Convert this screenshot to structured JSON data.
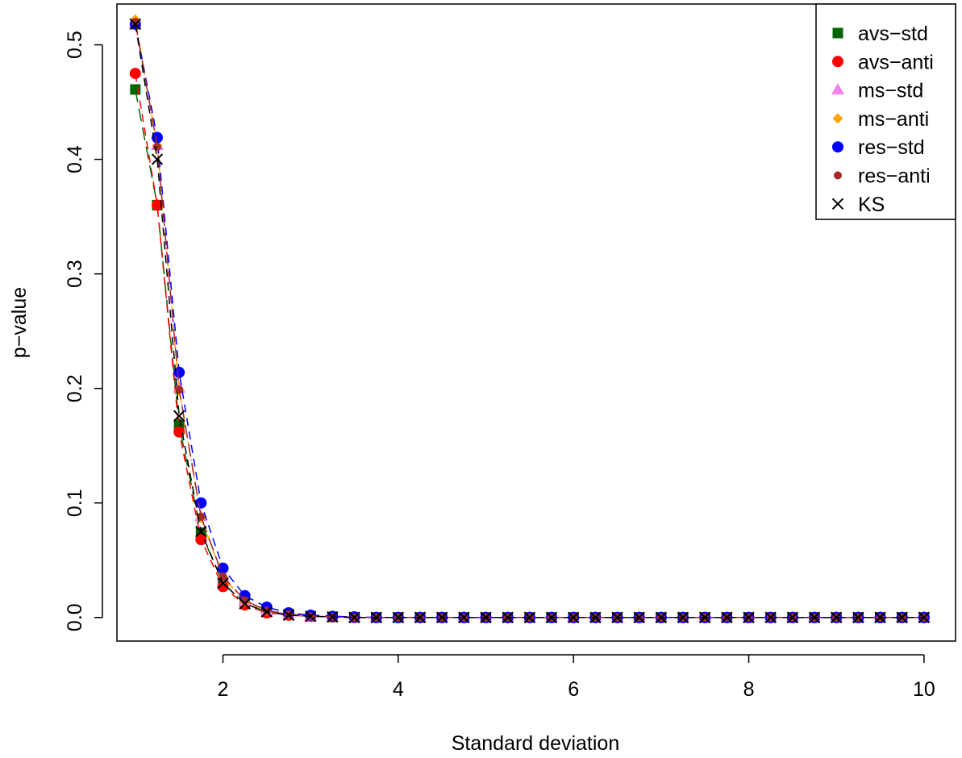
{
  "chart_data": {
    "type": "line",
    "title": "",
    "xlabel": "Standard deviation",
    "ylabel": "p−value",
    "xlim": [
      0.79,
      10.36
    ],
    "ylim": [
      -0.0206,
      0.5356
    ],
    "xticks": [
      2,
      4,
      6,
      8,
      10
    ],
    "xtick_labels": [
      "2",
      "4",
      "6",
      "8",
      "10"
    ],
    "yticks": [
      0.0,
      0.1,
      0.2,
      0.3,
      0.4,
      0.5
    ],
    "ytick_labels": [
      "0.0",
      "0.1",
      "0.2",
      "0.3",
      "0.4",
      "0.5"
    ],
    "grid": false,
    "legend_position": "top-right",
    "x": [
      1.0,
      1.25,
      1.5,
      1.75,
      2.0,
      2.25,
      2.5,
      2.75,
      3.0,
      3.25,
      3.5,
      3.75,
      4.0,
      4.25,
      4.5,
      4.75,
      5.0,
      5.25,
      5.5,
      5.75,
      6.0,
      6.25,
      6.5,
      6.75,
      7.0,
      7.25,
      7.5,
      7.75,
      8.0,
      8.25,
      8.5,
      8.75,
      9.0,
      9.25,
      9.5,
      9.75,
      10.0
    ],
    "series": [
      {
        "name": "avs−std",
        "color": "#006400",
        "marker": "square",
        "line": "longdash",
        "values": [
          0.461,
          0.36,
          0.168,
          0.074,
          0.03,
          0.012,
          0.005,
          0.003,
          0.001,
          0.0005,
          0,
          0,
          0,
          0,
          0,
          0,
          0,
          0,
          0,
          0,
          0,
          0,
          0,
          0,
          0,
          0,
          0,
          0,
          0,
          0,
          0,
          0,
          0,
          0,
          0,
          0,
          0
        ]
      },
      {
        "name": "avs−anti",
        "color": "#ff0000",
        "marker": "circle",
        "line": "dashed",
        "values": [
          0.475,
          0.36,
          0.162,
          0.068,
          0.027,
          0.011,
          0.004,
          0.002,
          0.001,
          0.0005,
          0,
          0,
          0,
          0,
          0,
          0,
          0,
          0,
          0,
          0,
          0,
          0,
          0,
          0,
          0,
          0,
          0,
          0,
          0,
          0,
          0,
          0,
          0,
          0,
          0,
          0,
          0
        ]
      },
      {
        "name": "ms−std",
        "color": "#ee82ee",
        "marker": "triangle",
        "line": "dotted",
        "values": [
          0.519,
          0.412,
          0.2,
          0.088,
          0.036,
          0.014,
          0.006,
          0.003,
          0.001,
          0.0005,
          0,
          0,
          0,
          0,
          0,
          0,
          0,
          0,
          0,
          0,
          0,
          0,
          0,
          0,
          0,
          0,
          0,
          0,
          0,
          0,
          0,
          0,
          0,
          0,
          0,
          0,
          0
        ]
      },
      {
        "name": "ms−anti",
        "color": "#ffa500",
        "marker": "diamond",
        "line": "dotdash",
        "values": [
          0.522,
          0.412,
          0.198,
          0.087,
          0.035,
          0.014,
          0.006,
          0.003,
          0.001,
          0.0005,
          0,
          0,
          0,
          0,
          0,
          0,
          0,
          0,
          0,
          0,
          0,
          0,
          0,
          0,
          0,
          0,
          0,
          0,
          0,
          0,
          0,
          0,
          0,
          0,
          0,
          0,
          0
        ]
      },
      {
        "name": "res−std",
        "color": "#0000ff",
        "marker": "circle",
        "line": "dashed",
        "values": [
          0.518,
          0.419,
          0.214,
          0.1,
          0.043,
          0.019,
          0.009,
          0.004,
          0.002,
          0.001,
          0.0005,
          0,
          0,
          0,
          0,
          0,
          0,
          0,
          0,
          0,
          0,
          0,
          0,
          0,
          0,
          0,
          0,
          0,
          0,
          0,
          0,
          0,
          0,
          0,
          0,
          0,
          0
        ]
      },
      {
        "name": "res−anti",
        "color": "#a52a2a",
        "marker": "smallcircle",
        "line": "longdash",
        "values": [
          0.52,
          0.411,
          0.199,
          0.088,
          0.036,
          0.015,
          0.006,
          0.003,
          0.001,
          0.0005,
          0,
          0,
          0,
          0,
          0,
          0,
          0,
          0,
          0,
          0,
          0,
          0,
          0,
          0,
          0,
          0,
          0,
          0,
          0,
          0,
          0,
          0,
          0,
          0,
          0,
          0,
          0
        ]
      },
      {
        "name": "KS",
        "color": "#000000",
        "marker": "cross",
        "line": "dashed",
        "values": [
          0.518,
          0.4,
          0.176,
          0.075,
          0.03,
          0.012,
          0.005,
          0.002,
          0.001,
          0.0005,
          0,
          0,
          0,
          0,
          0,
          0,
          0,
          0,
          0,
          0,
          0,
          0,
          0,
          0,
          0,
          0,
          0,
          0,
          0,
          0,
          0,
          0,
          0,
          0,
          0,
          0,
          0
        ]
      }
    ]
  }
}
